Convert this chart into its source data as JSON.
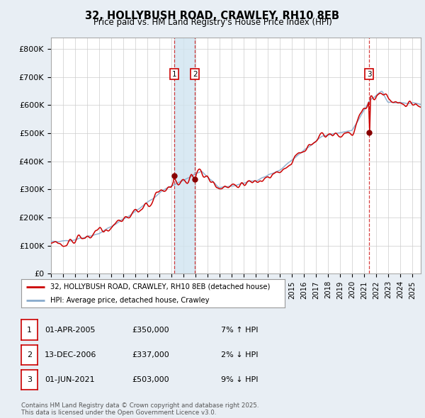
{
  "title": "32, HOLLYBUSH ROAD, CRAWLEY, RH10 8EB",
  "subtitle": "Price paid vs. HM Land Registry's House Price Index (HPI)",
  "ylabel_ticks": [
    "£0",
    "£100K",
    "£200K",
    "£300K",
    "£400K",
    "£500K",
    "£600K",
    "£700K",
    "£800K"
  ],
  "ylim": [
    0,
    840000
  ],
  "xlim_start": 1995.0,
  "xlim_end": 2025.7,
  "legend_line1": "32, HOLLYBUSH ROAD, CRAWLEY, RH10 8EB (detached house)",
  "legend_line2": "HPI: Average price, detached house, Crawley",
  "transaction1_date": "01-APR-2005",
  "transaction1_price": "£350,000",
  "transaction1_hpi": "7% ↑ HPI",
  "transaction1_x": 2005.25,
  "transaction1_y": 350000,
  "transaction2_date": "13-DEC-2006",
  "transaction2_price": "£337,000",
  "transaction2_hpi": "2% ↓ HPI",
  "transaction2_x": 2006.95,
  "transaction2_y": 337000,
  "transaction3_date": "01-JUN-2021",
  "transaction3_price": "£503,000",
  "transaction3_hpi": "9% ↓ HPI",
  "transaction3_x": 2021.42,
  "transaction3_y": 503000,
  "footnote": "Contains HM Land Registry data © Crown copyright and database right 2025.\nThis data is licensed under the Open Government Licence v3.0.",
  "line_color_red": "#cc0000",
  "line_color_blue": "#88aacc",
  "bg_color": "#e8eef4",
  "plot_bg": "#ffffff",
  "grid_color": "#cccccc",
  "span_color": "#d0e4f0"
}
